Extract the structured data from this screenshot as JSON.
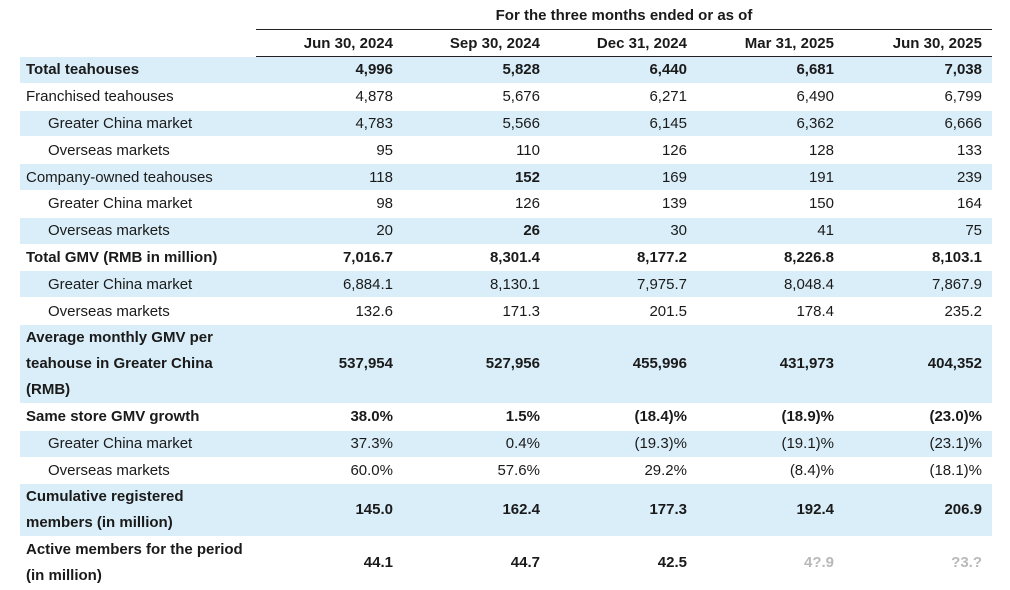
{
  "header": {
    "period_title": "For the three months ended or as of",
    "columns": [
      "Jun 30, 2024",
      "Sep 30, 2024",
      "Dec 31, 2024",
      "Mar 31, 2025",
      "Jun 30, 2025"
    ]
  },
  "rows": [
    {
      "label": "Total teahouses",
      "values": [
        "4,996",
        "5,828",
        "6,440",
        "6,681",
        "7,038"
      ]
    },
    {
      "label": "Franchised teahouses",
      "values": [
        "4,878",
        "5,676",
        "6,271",
        "6,490",
        "6,799"
      ]
    },
    {
      "label": "Greater China market",
      "values": [
        "4,783",
        "5,566",
        "6,145",
        "6,362",
        "6,666"
      ]
    },
    {
      "label": "Overseas markets",
      "values": [
        "95",
        "110",
        "126",
        "128",
        "133"
      ]
    },
    {
      "label": "Company-owned teahouses",
      "values": [
        "118",
        "152",
        "169",
        "191",
        "239"
      ]
    },
    {
      "label": "Greater China market",
      "values": [
        "98",
        "126",
        "139",
        "150",
        "164"
      ]
    },
    {
      "label": "Overseas markets",
      "values": [
        "20",
        "26",
        "30",
        "41",
        "75"
      ]
    },
    {
      "label": "Total GMV (RMB in million)",
      "values": [
        "7,016.7",
        "8,301.4",
        "8,177.2",
        "8,226.8",
        "8,103.1"
      ]
    },
    {
      "label": "Greater China market",
      "values": [
        "6,884.1",
        "8,130.1",
        "7,975.7",
        "8,048.4",
        "7,867.9"
      ]
    },
    {
      "label": "Overseas markets",
      "values": [
        "132.6",
        "171.3",
        "201.5",
        "178.4",
        "235.2"
      ]
    },
    {
      "label": "Average monthly GMV per teahouse in Greater China (RMB)",
      "values": [
        "537,954",
        "527,956",
        "455,996",
        "431,973",
        "404,352"
      ]
    },
    {
      "label": "Same store GMV growth",
      "values": [
        "38.0%",
        "1.5%",
        "(18.4)%",
        "(18.9)%",
        "(23.0)%"
      ]
    },
    {
      "label": "Greater China market",
      "values": [
        "37.3%",
        "0.4%",
        "(19.3)%",
        "(19.1)%",
        "(23.1)%"
      ]
    },
    {
      "label": "Overseas markets",
      "values": [
        "60.0%",
        "57.6%",
        "29.2%",
        "(8.4)%",
        "(18.1)%"
      ]
    },
    {
      "label": "Cumulative registered members (in million)",
      "values": [
        "145.0",
        "162.4",
        "177.3",
        "192.4",
        "206.9"
      ]
    },
    {
      "label": "Active members for the period (in million)",
      "values": [
        "44.1",
        "44.7",
        "42.5",
        "4?.9",
        "?3.?"
      ]
    }
  ]
}
